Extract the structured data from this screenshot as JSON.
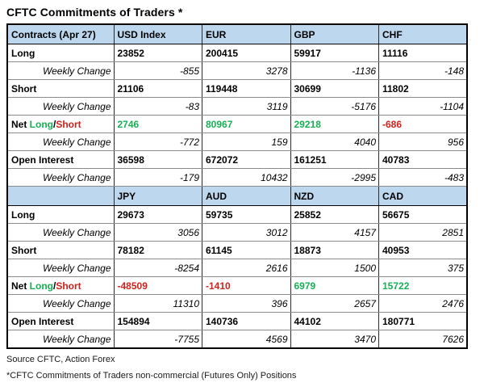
{
  "page_title": "CFTC Commitments of Traders *",
  "colors": {
    "header_bg": "#bdd7ee",
    "positive": "#17b055",
    "negative": "#cf231c"
  },
  "chart_data": {
    "type": "table",
    "title": "CFTC Commitments of Traders *",
    "net_label": {
      "prefix": "Net ",
      "long_text": "Long",
      "separator": "/",
      "short_text": "Short"
    },
    "sections": [
      {
        "header": [
          "Contracts (Apr 27)",
          "USD Index",
          "EUR",
          "GBP",
          "CHF"
        ],
        "rows": [
          {
            "label": "Long",
            "type": "value",
            "values": [
              "23852",
              "200415",
              "59917",
              "11116"
            ]
          },
          {
            "label": "Weekly Change",
            "type": "change",
            "values": [
              "-855",
              "3278",
              "-1136",
              "-148"
            ]
          },
          {
            "label": "Short",
            "type": "value",
            "values": [
              "21106",
              "119448",
              "30699",
              "11802"
            ]
          },
          {
            "label": "Weekly Change",
            "type": "change",
            "values": [
              "-83",
              "3119",
              "-5176",
              "-1104"
            ]
          },
          {
            "label": "Net Long/Short",
            "type": "net",
            "values": [
              "2746",
              "80967",
              "29218",
              "-686"
            ]
          },
          {
            "label": "Weekly Change",
            "type": "change",
            "values": [
              "-772",
              "159",
              "4040",
              "956"
            ]
          },
          {
            "label": "Open Interest",
            "type": "value",
            "values": [
              "36598",
              "672072",
              "161251",
              "40783"
            ]
          },
          {
            "label": "Weekly Change",
            "type": "change",
            "values": [
              "-179",
              "10432",
              "-2995",
              "-483"
            ]
          }
        ]
      },
      {
        "header": [
          "",
          "JPY",
          "AUD",
          "NZD",
          "CAD"
        ],
        "rows": [
          {
            "label": "Long",
            "type": "value",
            "values": [
              "29673",
              "59735",
              "25852",
              "56675"
            ]
          },
          {
            "label": "Weekly Change",
            "type": "change",
            "values": [
              "3056",
              "3012",
              "4157",
              "2851"
            ]
          },
          {
            "label": "Short",
            "type": "value",
            "values": [
              "78182",
              "61145",
              "18873",
              "40953"
            ]
          },
          {
            "label": "Weekly Change",
            "type": "change",
            "values": [
              "-8254",
              "2616",
              "1500",
              "375"
            ]
          },
          {
            "label": "Net Long/Short",
            "type": "net",
            "values": [
              "-48509",
              "-1410",
              "6979",
              "15722"
            ]
          },
          {
            "label": "Weekly Change",
            "type": "change",
            "values": [
              "11310",
              "396",
              "2657",
              "2476"
            ]
          },
          {
            "label": "Open Interest",
            "type": "value",
            "values": [
              "154894",
              "140736",
              "44102",
              "180771"
            ]
          },
          {
            "label": "Weekly Change",
            "type": "change",
            "values": [
              "-7755",
              "4569",
              "3470",
              "7626"
            ]
          }
        ]
      }
    ]
  },
  "footer": {
    "source": "Source CFTC, Action Forex",
    "note": "*CFTC Commitments of Traders non-commercial (Futures Only) Positions"
  }
}
